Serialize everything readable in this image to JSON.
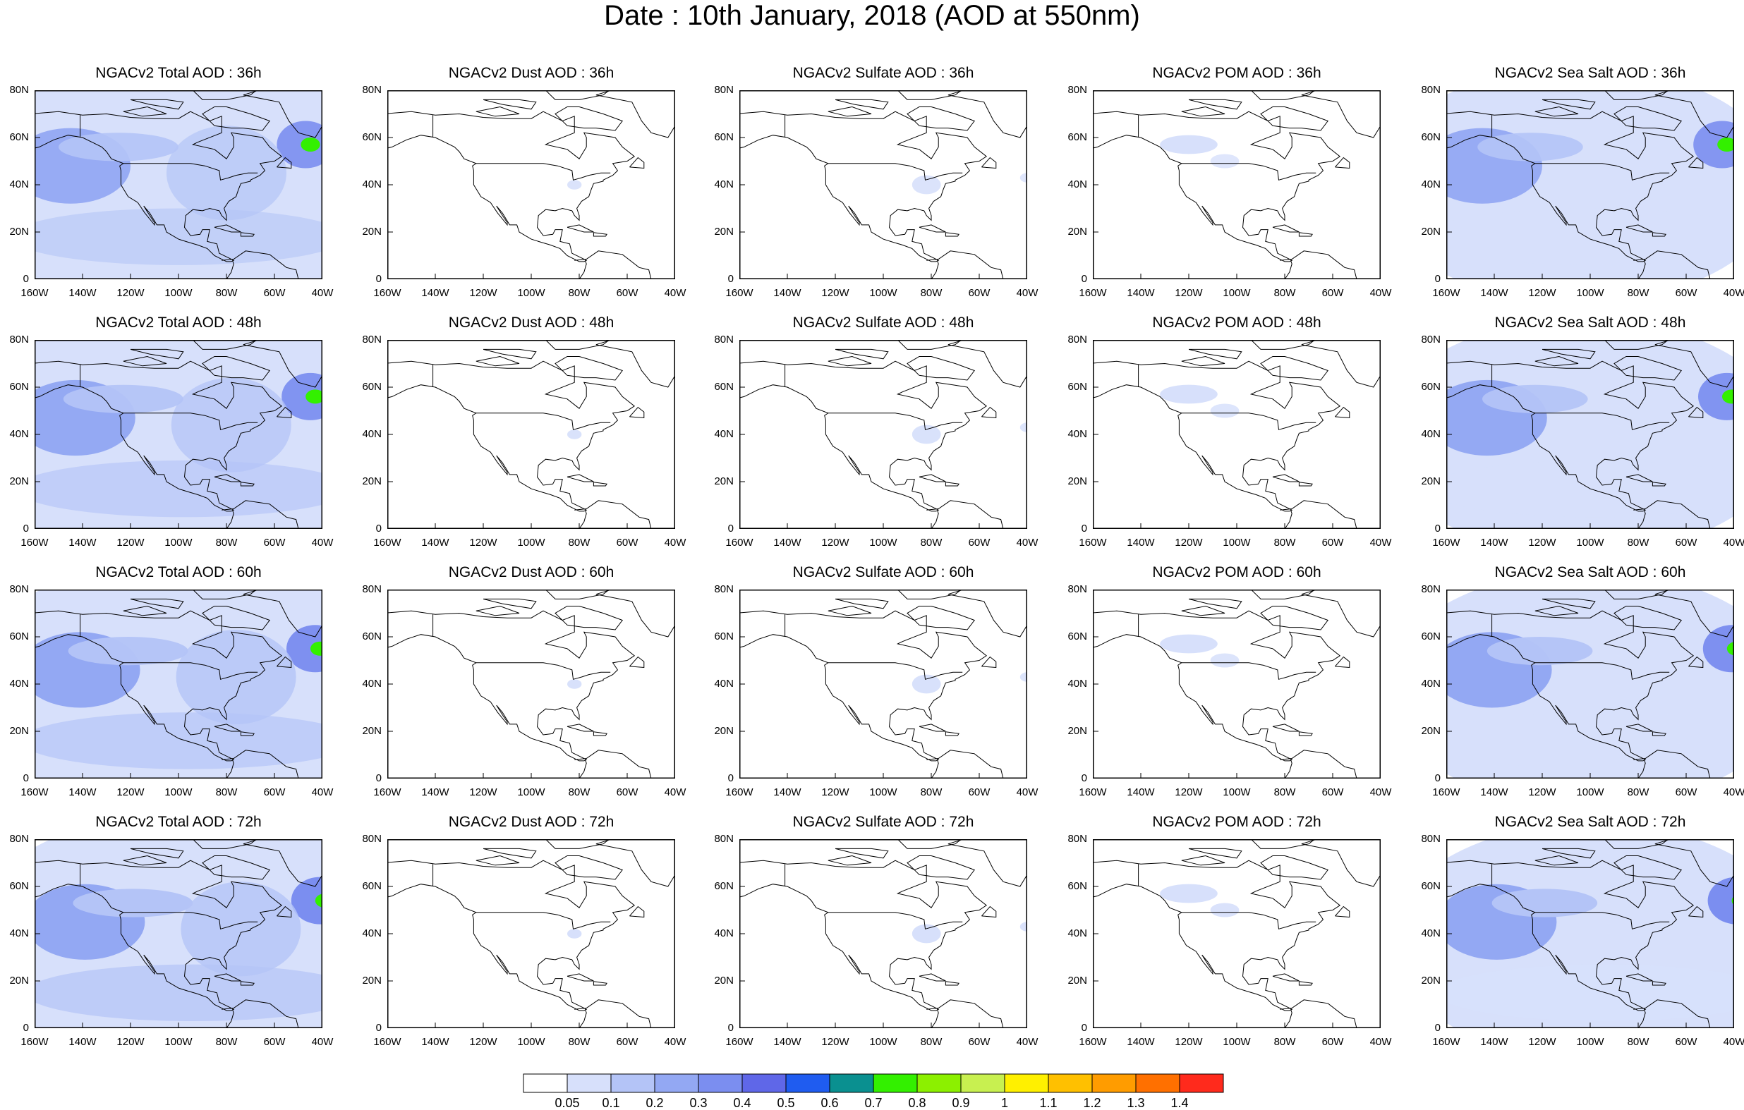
{
  "title": "Date : 10th January, 2018 (AOD at 550nm)",
  "columns": [
    "Total",
    "Dust",
    "Sulfate",
    "POM",
    "Sea Salt"
  ],
  "panels": [
    [
      "NGACv2 Total AOD : 36h",
      "NGACv2 Dust AOD : 36h",
      "NGACv2 Sulfate AOD : 36h",
      "NGACv2 POM AOD : 36h",
      "NGACv2 Sea Salt AOD : 36h"
    ],
    [
      "NGACv2 Total AOD : 48h",
      "NGACv2 Dust AOD : 48h",
      "NGACv2 Sulfate AOD : 48h",
      "NGACv2 POM AOD : 48h",
      "NGACv2 Sea Salt AOD : 48h"
    ],
    [
      "NGACv2 Total AOD : 60h",
      "NGACv2 Dust AOD : 60h",
      "NGACv2 Sulfate AOD : 60h",
      "NGACv2 POM AOD : 60h",
      "NGACv2 Sea Salt AOD : 60h"
    ],
    [
      "NGACv2 Total AOD : 72h",
      "NGACv2 Dust AOD : 72h",
      "NGACv2 Sulfate AOD : 72h",
      "NGACv2 POM AOD : 72h",
      "NGACv2 Sea Salt  AOD : 72h"
    ]
  ],
  "x_ticks": [
    "160W",
    "140W",
    "120W",
    "100W",
    "80W",
    "60W",
    "40W"
  ],
  "y_ticks": [
    "80N",
    "60N",
    "40N",
    "20N",
    "0"
  ],
  "map_extent": {
    "lon": [
      -160,
      -40
    ],
    "lat": [
      0,
      80
    ]
  },
  "colorbar": {
    "colors": [
      "#ffffff",
      "#d7e0fb",
      "#b4c4f7",
      "#93a8f3",
      "#7b8ef0",
      "#5f67e8",
      "#1f5cf0",
      "#0a9090",
      "#33f000",
      "#8cf000",
      "#c8f050",
      "#fff000",
      "#ffc000",
      "#ff9c00",
      "#ff7000",
      "#ff2a1c"
    ],
    "labels": [
      "0.05",
      "0.1",
      "0.2",
      "0.3",
      "0.4",
      "0.5",
      "0.6",
      "0.7",
      "0.8",
      "0.9",
      "1",
      "1.1",
      "1.2",
      "1.3",
      "1.4"
    ]
  }
}
